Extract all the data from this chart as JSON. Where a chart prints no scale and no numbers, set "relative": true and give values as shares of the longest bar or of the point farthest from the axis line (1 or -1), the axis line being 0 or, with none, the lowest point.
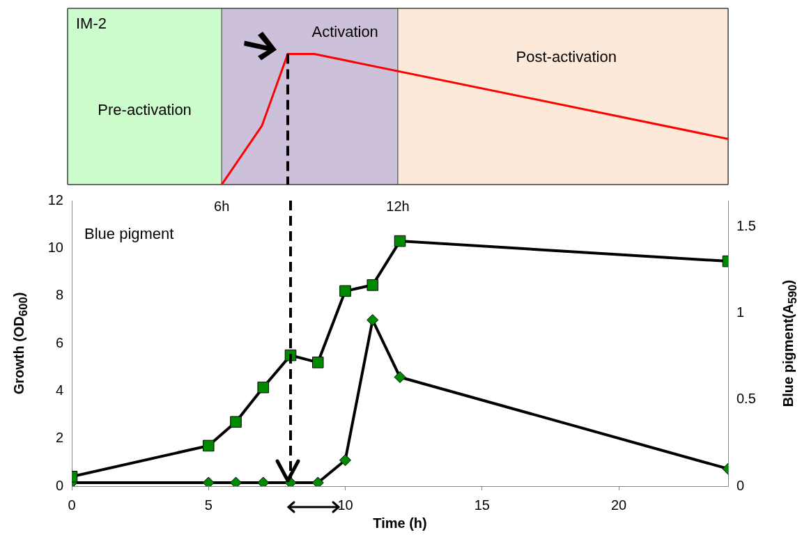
{
  "chart_data": [
    {
      "type": "line",
      "relative": true,
      "xlim": [
        0,
        24
      ],
      "xticks": [
        {
          "value": 5.6,
          "label": "6h"
        },
        {
          "value": 12,
          "label": "12h"
        }
      ],
      "tick_labels": "x",
      "grid": false,
      "legend": false,
      "marker": "none",
      "x": [
        5.6,
        7.06,
        8,
        8.97,
        24
      ],
      "series": [
        {
          "color": "#ff0000",
          "values": [
            0,
            0.45,
            1,
            1,
            0.35
          ]
        }
      ],
      "bands": [
        {
          "axis": "x",
          "from": 0,
          "to": 5.6,
          "label": "Pre-activation",
          "color": "#ccfccc"
        },
        {
          "axis": "x",
          "from": 5.6,
          "to": 12,
          "label": "Activation",
          "color": "#ccc0da"
        },
        {
          "axis": "x",
          "from": 12,
          "to": 24,
          "label": "Post-activation",
          "color": "#fde9d9"
        }
      ],
      "ref_lines": [
        {
          "axis": "x",
          "value": 8,
          "color": "#000000",
          "line_style": "dashed"
        }
      ],
      "annotations": [
        "IM-2"
      ]
    },
    {
      "type": "line",
      "xlabel": "Time (h)",
      "ylabel": "Growth (OD$_{600}$)",
      "y2label": "Blue pigment(A$_{590}$)",
      "grid": false,
      "legend": false,
      "x": [
        0,
        5,
        6,
        7,
        8,
        9,
        10,
        11,
        12,
        24
      ],
      "xlim": [
        0,
        24
      ],
      "xticks": [
        0,
        5,
        10,
        15,
        20
      ],
      "ylim": [
        0,
        12
      ],
      "yticks": [
        0,
        2,
        4,
        6,
        8,
        10,
        12
      ],
      "y2lim": [
        0,
        1.65
      ],
      "y2ticks": [
        0,
        0.5,
        1,
        1.5
      ],
      "series": [
        {
          "color": "#008a00",
          "marker": "square",
          "values": [
            0.4,
            1.7,
            2.7,
            4.15,
            5.5,
            5.2,
            8.2,
            8.45,
            10.3,
            9.45
          ]
        },
        {
          "color": "#008a00",
          "marker": "diamond",
          "axis": "y2",
          "values": [
            0.02,
            0.02,
            0.02,
            0.02,
            0.02,
            0.02,
            0.15,
            0.96,
            0.63,
            0.1
          ]
        }
      ],
      "ref_lines": [
        {
          "axis": "x",
          "value": 8,
          "color": "#000000",
          "line_style": "dashed"
        }
      ],
      "annotations": [
        "Blue pigment"
      ]
    }
  ]
}
